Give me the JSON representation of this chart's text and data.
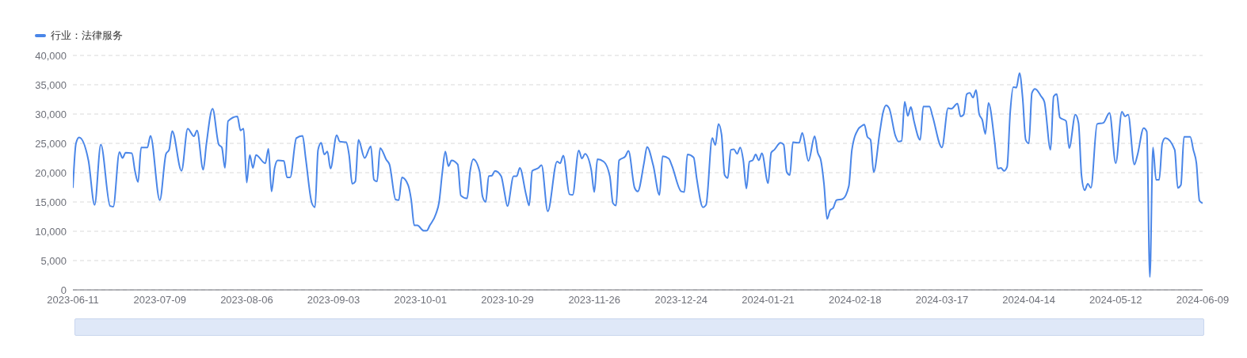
{
  "chart_data": {
    "type": "line",
    "legend": "top left",
    "grid": "y",
    "xlim": [
      "2023-06-11",
      "2024-06-09"
    ],
    "xticks": [
      "2023-06-11",
      "2023-07-09",
      "2023-08-06",
      "2023-09-03",
      "2023-10-01",
      "2023-10-29",
      "2023-11-26",
      "2023-12-24",
      "2024-01-21",
      "2024-02-18",
      "2024-03-17",
      "2024-04-14",
      "2024-05-12",
      "2024-06-09"
    ],
    "ylim": [
      0,
      40000
    ],
    "yticks": [
      {
        "value": 0,
        "label": "0"
      },
      {
        "value": 5000,
        "label": "5,000"
      },
      {
        "value": 10000,
        "label": "10,000"
      },
      {
        "value": 15000,
        "label": "15,000"
      },
      {
        "value": 20000,
        "label": "20,000"
      },
      {
        "value": 25000,
        "label": "25,000"
      },
      {
        "value": 30000,
        "label": "30,000"
      },
      {
        "value": 35000,
        "label": "35,000"
      },
      {
        "value": 40000,
        "label": "40,000"
      }
    ],
    "series": [
      {
        "name": "行业：法律服务",
        "color": "#4a86e8",
        "x": [
          "2023-06-11",
          "2023-06-12",
          "2023-06-13",
          "2023-06-16",
          "2023-06-18",
          "2023-06-20",
          "2023-06-23",
          "2023-06-24",
          "2023-06-26",
          "2023-06-27",
          "2023-06-28",
          "2023-06-30",
          "2023-07-01",
          "2023-07-02",
          "2023-07-03",
          "2023-07-05",
          "2023-07-06",
          "2023-07-09",
          "2023-07-11",
          "2023-07-12",
          "2023-07-13",
          "2023-07-16",
          "2023-07-18",
          "2023-07-20",
          "2023-07-21",
          "2023-07-23",
          "2023-07-24",
          "2023-07-26",
          "2023-07-28",
          "2023-07-29",
          "2023-07-30",
          "2023-07-31",
          "2023-08-03",
          "2023-08-04",
          "2023-08-05",
          "2023-08-06",
          "2023-08-07",
          "2023-08-08",
          "2023-08-09",
          "2023-08-12",
          "2023-08-13",
          "2023-08-14",
          "2023-08-15",
          "2023-08-16",
          "2023-08-18",
          "2023-08-19",
          "2023-08-20",
          "2023-08-22",
          "2023-08-24",
          "2023-08-25",
          "2023-08-27",
          "2023-08-28",
          "2023-08-29",
          "2023-08-30",
          "2023-08-31",
          "2023-09-01",
          "2023-09-02",
          "2023-09-04",
          "2023-09-05",
          "2023-09-07",
          "2023-09-08",
          "2023-09-09",
          "2023-09-10",
          "2023-09-11",
          "2023-09-13",
          "2023-09-15",
          "2023-09-16",
          "2023-09-17",
          "2023-09-18",
          "2023-09-20",
          "2023-09-21",
          "2023-09-23",
          "2023-09-24",
          "2023-09-25",
          "2023-09-27",
          "2023-09-28",
          "2023-09-29",
          "2023-09-30",
          "2023-10-02",
          "2023-10-03",
          "2023-10-04",
          "2023-10-06",
          "2023-10-07",
          "2023-10-08",
          "2023-10-09",
          "2023-10-10",
          "2023-10-11",
          "2023-10-13",
          "2023-10-14",
          "2023-10-16",
          "2023-10-17",
          "2023-10-18",
          "2023-10-20",
          "2023-10-21",
          "2023-10-22",
          "2023-10-23",
          "2023-10-24",
          "2023-10-25",
          "2023-10-27",
          "2023-10-28",
          "2023-10-29",
          "2023-10-31",
          "2023-11-01",
          "2023-11-02",
          "2023-11-04",
          "2023-11-05",
          "2023-11-06",
          "2023-11-08",
          "2023-11-09",
          "2023-11-11",
          "2023-11-14",
          "2023-11-15",
          "2023-11-16",
          "2023-11-18",
          "2023-11-19",
          "2023-11-21",
          "2023-11-22",
          "2023-11-23",
          "2023-11-25",
          "2023-11-26",
          "2023-11-27",
          "2023-11-29",
          "2023-12-01",
          "2023-12-02",
          "2023-12-03",
          "2023-12-04",
          "2023-12-06",
          "2023-12-07",
          "2023-12-09",
          "2023-12-10",
          "2023-12-12",
          "2023-12-13",
          "2023-12-15",
          "2023-12-17",
          "2023-12-18",
          "2023-12-20",
          "2023-12-21",
          "2023-12-24",
          "2023-12-25",
          "2023-12-26",
          "2023-12-28",
          "2023-12-29",
          "2023-12-31",
          "2024-01-01",
          "2024-01-03",
          "2024-01-04",
          "2024-01-05",
          "2024-01-06",
          "2024-01-07",
          "2024-01-08",
          "2024-01-09",
          "2024-01-10",
          "2024-01-11",
          "2024-01-12",
          "2024-01-13",
          "2024-01-14",
          "2024-01-15",
          "2024-01-16",
          "2024-01-17",
          "2024-01-18",
          "2024-01-19",
          "2024-01-21",
          "2024-01-22",
          "2024-01-23",
          "2024-01-25",
          "2024-01-26",
          "2024-01-27",
          "2024-01-28",
          "2024-01-29",
          "2024-01-31",
          "2024-02-01",
          "2024-02-03",
          "2024-02-05",
          "2024-02-06",
          "2024-02-07",
          "2024-02-08",
          "2024-02-09",
          "2024-02-10",
          "2024-02-11",
          "2024-02-12",
          "2024-02-14",
          "2024-02-16",
          "2024-02-17",
          "2024-02-19",
          "2024-02-20",
          "2024-02-21",
          "2024-02-22",
          "2024-02-23",
          "2024-02-24",
          "2024-02-26",
          "2024-02-27",
          "2024-02-28",
          "2024-02-29",
          "2024-03-02",
          "2024-03-03",
          "2024-03-04",
          "2024-03-05",
          "2024-03-06",
          "2024-03-07",
          "2024-03-08",
          "2024-03-10",
          "2024-03-11",
          "2024-03-13",
          "2024-03-14",
          "2024-03-17",
          "2024-03-19",
          "2024-03-20",
          "2024-03-22",
          "2024-03-23",
          "2024-03-24",
          "2024-03-25",
          "2024-03-26",
          "2024-03-27",
          "2024-03-28",
          "2024-03-29",
          "2024-03-30",
          "2024-03-31",
          "2024-04-01",
          "2024-04-03",
          "2024-04-04",
          "2024-04-05",
          "2024-04-06",
          "2024-04-07",
          "2024-04-08",
          "2024-04-09",
          "2024-04-10",
          "2024-04-11",
          "2024-04-12",
          "2024-04-13",
          "2024-04-14",
          "2024-04-15",
          "2024-04-16",
          "2024-04-18",
          "2024-04-19",
          "2024-04-21",
          "2024-04-22",
          "2024-04-23",
          "2024-04-24",
          "2024-04-26",
          "2024-04-27",
          "2024-04-29",
          "2024-04-30",
          "2024-05-01",
          "2024-05-02",
          "2024-05-03",
          "2024-05-04",
          "2024-05-06",
          "2024-05-08",
          "2024-05-10",
          "2024-05-12",
          "2024-05-14",
          "2024-05-15",
          "2024-05-16",
          "2024-05-18",
          "2024-05-19",
          "2024-05-21",
          "2024-05-22",
          "2024-05-23",
          "2024-05-24",
          "2024-05-25",
          "2024-05-26",
          "2024-05-27",
          "2024-05-28",
          "2024-05-31",
          "2024-06-01",
          "2024-06-02",
          "2024-06-03",
          "2024-06-05",
          "2024-06-06",
          "2024-06-07",
          "2024-06-08",
          "2024-06-09"
        ],
        "values": [
          17400,
          25000,
          26000,
          22100,
          14500,
          24800,
          14300,
          14200,
          23500,
          22500,
          23400,
          23300,
          20300,
          18400,
          24300,
          24300,
          26300,
          15300,
          23200,
          23900,
          27100,
          20300,
          27500,
          26200,
          27200,
          20500,
          24800,
          30900,
          24800,
          24300,
          20800,
          28800,
          29600,
          27200,
          27500,
          18300,
          23000,
          20800,
          23000,
          21600,
          24100,
          16800,
          20800,
          22100,
          22000,
          19200,
          19200,
          25900,
          26300,
          22500,
          14800,
          14100,
          23900,
          25100,
          23100,
          23600,
          20700,
          26400,
          25300,
          25200,
          23000,
          18100,
          18500,
          25600,
          22500,
          24500,
          18800,
          18500,
          24200,
          22200,
          21400,
          15400,
          15300,
          19200,
          17900,
          15400,
          11000,
          11000,
          10100,
          10100,
          11000,
          13000,
          15000,
          19900,
          23600,
          21100,
          22100,
          21400,
          16100,
          15600,
          20300,
          22300,
          20300,
          15900,
          15000,
          19400,
          19500,
          20300,
          19400,
          16800,
          14300,
          19400,
          19400,
          20800,
          16300,
          14400,
          20300,
          20800,
          21300,
          13400,
          21900,
          21600,
          22900,
          16300,
          16200,
          23800,
          22400,
          23200,
          20500,
          16700,
          22300,
          21900,
          19400,
          14800,
          14400,
          22100,
          22800,
          23700,
          17400,
          16800,
          21600,
          24400,
          21200,
          16200,
          22800,
          22400,
          21200,
          16800,
          16700,
          23100,
          22600,
          19000,
          14100,
          14500,
          25900,
          24700,
          28300,
          26500,
          19600,
          19100,
          23900,
          24000,
          23200,
          24300,
          22100,
          17300,
          21900,
          22100,
          23100,
          22100,
          23300,
          18200,
          23400,
          23900,
          25100,
          24800,
          20100,
          19600,
          25200,
          25100,
          26800,
          22000,
          26200,
          23400,
          22100,
          18100,
          12100,
          13600,
          14000,
          15300,
          15500,
          17700,
          23900,
          27400,
          27900,
          28200,
          26100,
          25600,
          20100,
          27000,
          30200,
          31500,
          31000,
          26300,
          25300,
          25400,
          32100,
          29700,
          31200,
          28800,
          25600,
          31300,
          31300,
          29600,
          24300,
          31000,
          30900,
          31800,
          29600,
          29900,
          33400,
          33600,
          32800,
          34100,
          30000,
          29000,
          26600,
          31900,
          25200,
          20700,
          20800,
          20300,
          21000,
          30300,
          34600,
          34500,
          37000,
          32800,
          25600,
          25000,
          33600,
          34300,
          33000,
          32100,
          23900,
          33000,
          33400,
          29400,
          28800,
          24200,
          29900,
          28500,
          19400,
          17000,
          18100,
          17400,
          28300,
          28500,
          30200,
          21600,
          30400,
          29600,
          29900,
          21400,
          23000,
          27600,
          27000,
          2200,
          24300,
          18800,
          18800,
          25000,
          25900,
          23900,
          17400,
          17900,
          26100,
          26100,
          23900,
          21600,
          15200,
          14800
        ]
      }
    ]
  }
}
